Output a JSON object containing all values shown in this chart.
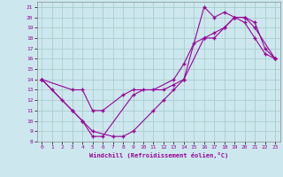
{
  "xlabel": "Windchill (Refroidissement éolien,°C)",
  "xlim": [
    -0.5,
    23.5
  ],
  "ylim": [
    8,
    21.5
  ],
  "xticks": [
    0,
    1,
    2,
    3,
    4,
    5,
    6,
    7,
    8,
    9,
    10,
    11,
    12,
    13,
    14,
    15,
    16,
    17,
    18,
    19,
    20,
    21,
    22,
    23
  ],
  "yticks": [
    8,
    9,
    10,
    11,
    12,
    13,
    14,
    15,
    16,
    17,
    18,
    19,
    20,
    21
  ],
  "bg_color": "#cce8ee",
  "line_color": "#990099",
  "grid_color": "#aacccc",
  "lines": [
    {
      "x": [
        0,
        1,
        3,
        4,
        5,
        6,
        9,
        10,
        11,
        13,
        14,
        15,
        16,
        17,
        18,
        19,
        20,
        21,
        22,
        23
      ],
      "y": [
        14,
        13,
        11,
        10,
        8.5,
        8.5,
        12.5,
        13,
        13,
        14,
        15.5,
        17.5,
        18,
        18,
        19,
        20,
        19.5,
        18,
        16.5,
        16
      ]
    },
    {
      "x": [
        0,
        2,
        3,
        4,
        5,
        7,
        8,
        9,
        11,
        12,
        13,
        14,
        16,
        17,
        18,
        19,
        20,
        21,
        23
      ],
      "y": [
        14,
        12,
        11,
        10,
        9,
        8.5,
        8.5,
        9,
        11,
        12,
        13,
        14,
        18,
        18.5,
        19,
        20,
        20,
        19,
        16
      ]
    },
    {
      "x": [
        0,
        3,
        4,
        5,
        6,
        8,
        9,
        12,
        13,
        14,
        16,
        17,
        18,
        19,
        20,
        21,
        22,
        23
      ],
      "y": [
        14,
        13,
        13,
        11,
        11,
        12.5,
        13,
        13,
        13.5,
        14,
        21,
        20,
        20.5,
        20,
        20,
        19.5,
        17,
        16
      ]
    }
  ]
}
